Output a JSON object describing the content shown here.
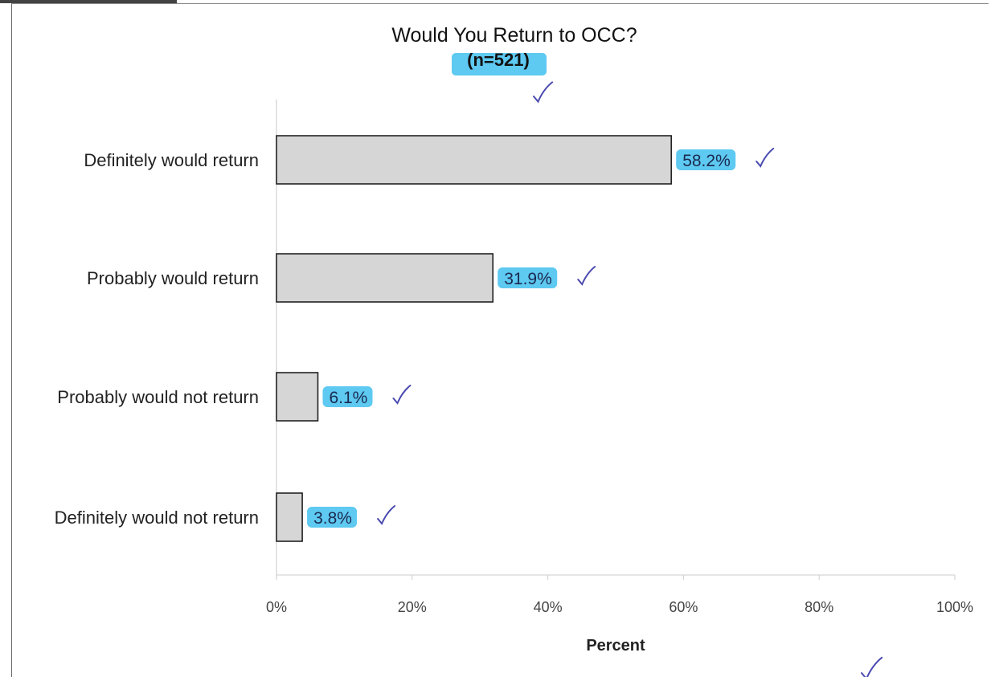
{
  "colors": {
    "bar_fill": "#d6d6d6",
    "bar_stroke": "#222222",
    "highlight": "#4dc3f0",
    "check_mark": "#4a4ab0"
  },
  "chart_data": {
    "type": "bar",
    "orientation": "horizontal",
    "title": "Would You Return to OCC?",
    "subtitle": "(n=521)",
    "categories": [
      "Definitely would return",
      "Probably would return",
      "Probably would not return",
      "Definitely would not return"
    ],
    "values": [
      58.2,
      31.9,
      6.1,
      3.8
    ],
    "data_labels": [
      "58.2%",
      "31.9%",
      "6.1%",
      "3.8%"
    ],
    "xlabel": "Percent",
    "ylabel": "",
    "xlim": [
      0,
      100
    ],
    "x_ticks": [
      "0%",
      "20%",
      "40%",
      "60%",
      "80%",
      "100%"
    ],
    "grid": false,
    "legend": "none"
  }
}
